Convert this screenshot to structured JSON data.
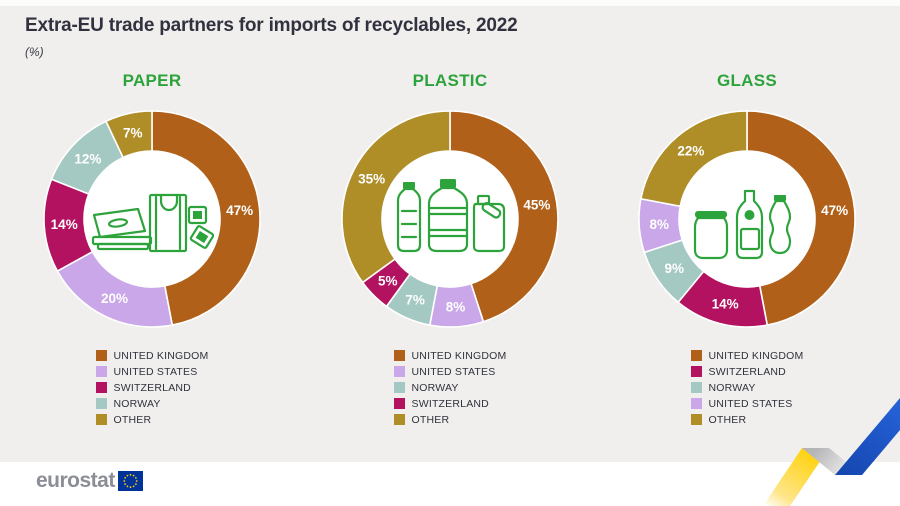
{
  "header": {
    "title": "Extra-EU trade partners for imports of recyclables, 2022",
    "subtitle": "(%)"
  },
  "footer": {
    "brand": "eurostat"
  },
  "colors": {
    "background": "#f0efed",
    "footer_background": "#ffffff",
    "title_text": "#32323f",
    "category_green": "#2da33c",
    "icon_green": "#2da33c",
    "legend_text": "#30313c",
    "percent_label": "#ffffff",
    "uk_brown": "#b06018",
    "us_purple": "#c9a7e8",
    "switzerland_magenta": "#b2125f",
    "norway_teal": "#a4c8c2",
    "other_gold": "#af8e27",
    "logo_gray": "#8b8e96",
    "eu_flag_blue": "#003399",
    "eu_star_yellow": "#ffcc00",
    "ribbon_yellow": "#ffd20d",
    "ribbon_blue": "#1d53c6",
    "ribbon_gray": "#b5b5b8"
  },
  "chart_data": [
    {
      "type": "pie",
      "title": "PAPER",
      "unit": "%",
      "icon": "paper-products-icon",
      "legend_position": "bottom",
      "segments": [
        {
          "label": "UNITED KINGDOM",
          "value": 47,
          "color": "#b06018"
        },
        {
          "label": "UNITED STATES",
          "value": 20,
          "color": "#c9a7e8"
        },
        {
          "label": "SWITZERLAND",
          "value": 14,
          "color": "#b2125f"
        },
        {
          "label": "NORWAY",
          "value": 12,
          "color": "#a4c8c2"
        },
        {
          "label": "OTHER",
          "value": 7,
          "color": "#af8e27"
        }
      ]
    },
    {
      "type": "pie",
      "title": "PLASTIC",
      "unit": "%",
      "icon": "plastic-bottles-icon",
      "legend_position": "bottom",
      "segments": [
        {
          "label": "UNITED KINGDOM",
          "value": 45,
          "color": "#b06018"
        },
        {
          "label": "UNITED STATES",
          "value": 8,
          "color": "#c9a7e8"
        },
        {
          "label": "NORWAY",
          "value": 7,
          "color": "#a4c8c2"
        },
        {
          "label": "SWITZERLAND",
          "value": 5,
          "color": "#b2125f"
        },
        {
          "label": "OTHER",
          "value": 35,
          "color": "#af8e27"
        }
      ]
    },
    {
      "type": "pie",
      "title": "GLASS",
      "unit": "%",
      "icon": "glass-containers-icon",
      "legend_position": "bottom",
      "segments": [
        {
          "label": "UNITED KINGDOM",
          "value": 47,
          "color": "#b06018"
        },
        {
          "label": "SWITZERLAND",
          "value": 14,
          "color": "#b2125f"
        },
        {
          "label": "NORWAY",
          "value": 9,
          "color": "#a4c8c2"
        },
        {
          "label": "UNITED STATES",
          "value": 8,
          "color": "#c9a7e8"
        },
        {
          "label": "OTHER",
          "value": 22,
          "color": "#af8e27"
        }
      ]
    }
  ]
}
